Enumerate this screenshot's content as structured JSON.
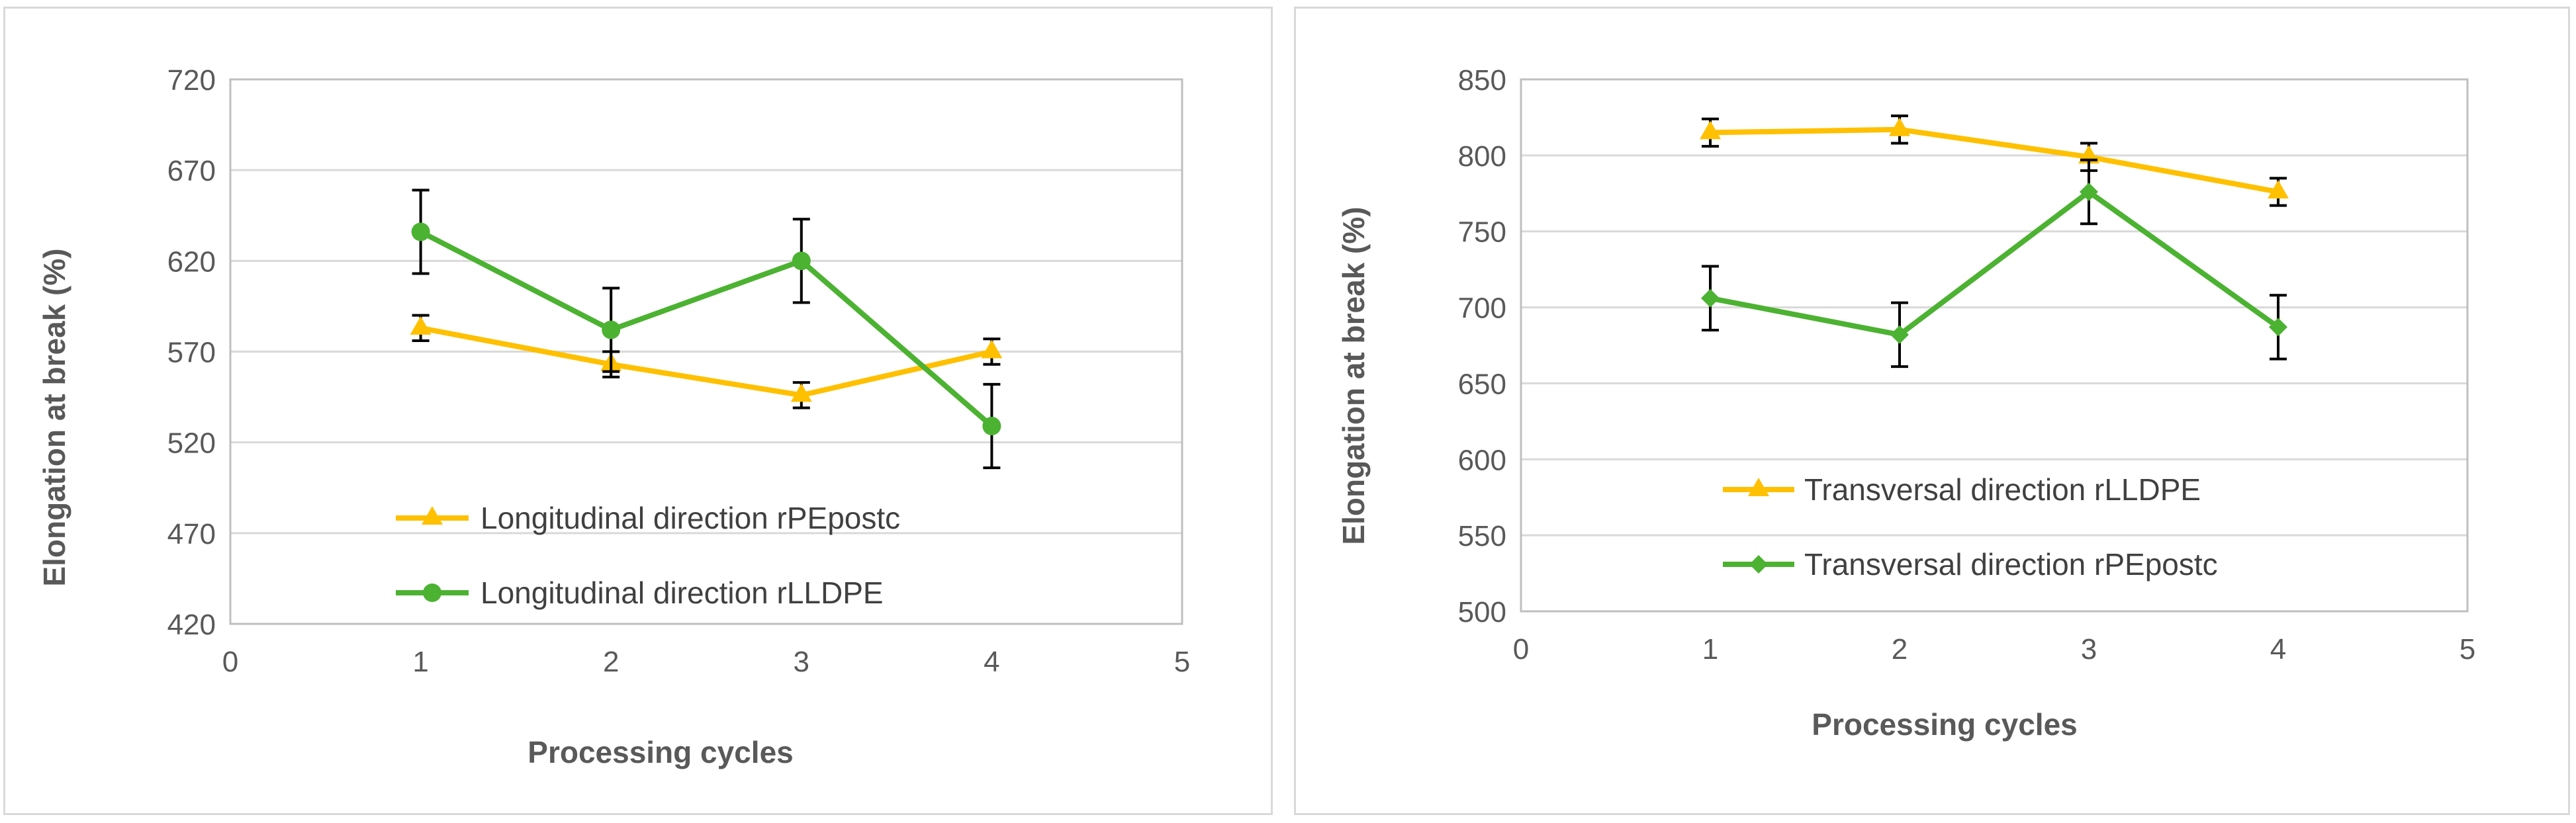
{
  "chart_data": [
    {
      "type": "line",
      "xlabel": "Processing cycles",
      "ylabel": "Elongation at break (%)",
      "xlim": [
        0,
        5
      ],
      "ylim": [
        420,
        720
      ],
      "xticks": [
        0,
        1,
        2,
        3,
        4,
        5
      ],
      "yticks": [
        420,
        470,
        520,
        570,
        620,
        670,
        720
      ],
      "grid": "horizontal",
      "legend_position": "inside-bottom-center",
      "series": [
        {
          "name": "Longitudinal direction rPEpostc",
          "marker": "triangle",
          "color": "#ffc000",
          "x": [
            1,
            2,
            3,
            4
          ],
          "y": [
            583,
            563,
            546,
            570
          ],
          "error": [
            7,
            7,
            7,
            7
          ]
        },
        {
          "name": "Longitudinal direction rLLDPE",
          "marker": "circle",
          "color": "#4cb232",
          "x": [
            1,
            2,
            3,
            4
          ],
          "y": [
            636,
            582,
            620,
            529
          ],
          "error": [
            23,
            23,
            23,
            23
          ]
        }
      ]
    },
    {
      "type": "line",
      "xlabel": "Processing cycles",
      "ylabel": "Elongation at break (%)",
      "xlim": [
        0,
        5
      ],
      "ylim": [
        500,
        850
      ],
      "xticks": [
        0,
        1,
        2,
        3,
        4,
        5
      ],
      "yticks": [
        500,
        550,
        600,
        650,
        700,
        750,
        800,
        850
      ],
      "grid": "horizontal",
      "legend_position": "inside-bottom-center",
      "series": [
        {
          "name": "Transversal direction rLLDPE",
          "marker": "triangle",
          "color": "#ffc000",
          "x": [
            1,
            2,
            3,
            4
          ],
          "y": [
            815,
            817,
            799,
            776
          ],
          "error": [
            9,
            9,
            9,
            9
          ]
        },
        {
          "name": "Transversal direction rPEpostc",
          "marker": "diamond",
          "color": "#4cb232",
          "x": [
            1,
            2,
            3,
            4
          ],
          "y": [
            706,
            682,
            776,
            687
          ],
          "error": [
            21,
            21,
            21,
            21
          ]
        }
      ]
    }
  ]
}
